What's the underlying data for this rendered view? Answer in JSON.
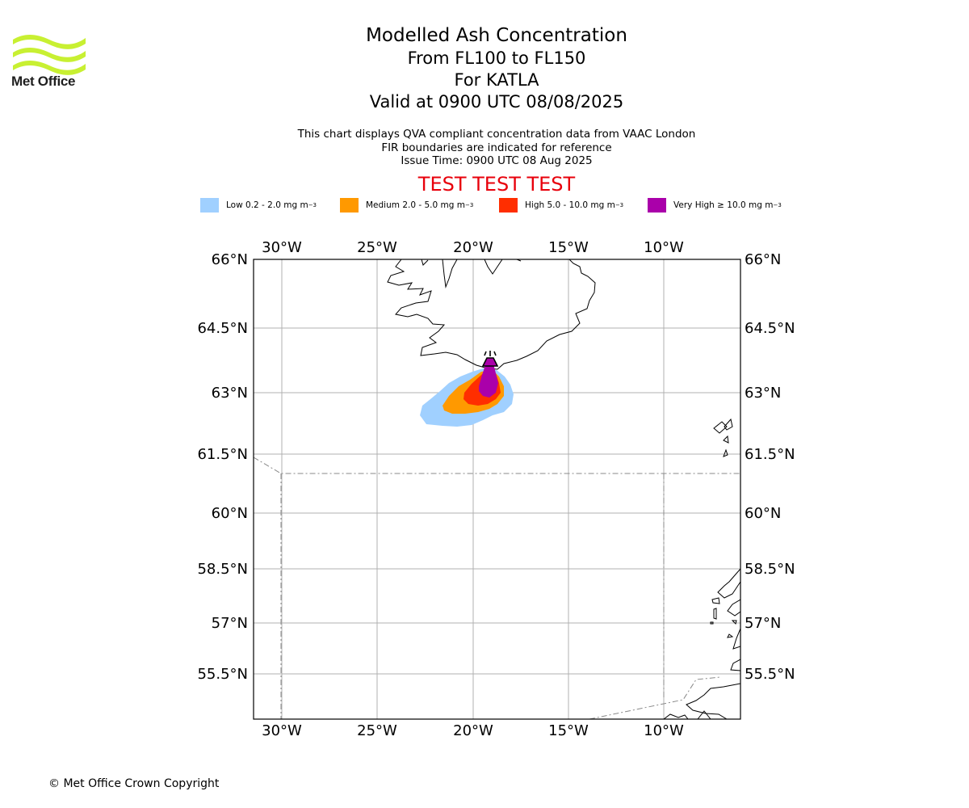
{
  "branding": {
    "logo_text": "Met Office",
    "logo_color": "#c8f032"
  },
  "title": {
    "main": "Modelled Ash Concentration",
    "levels": "From FL100 to FL150",
    "volcano": "For KATLA",
    "valid": "Valid at 0900 UTC 08/08/2025"
  },
  "notes": {
    "line1": "This chart displays QVA compliant concentration data from VAAC London",
    "line2": "FIR boundaries are indicated for reference",
    "line3": "Issue Time: 0900 UTC 08 Aug 2025"
  },
  "test_banner": {
    "text": "TEST TEST TEST",
    "color": "#e8000b"
  },
  "legend": [
    {
      "label": "Low 0.2 - 2.0 mg m",
      "unit_exp": "−3",
      "color": "#a0d0ff"
    },
    {
      "label": "Medium 2.0 - 5.0 mg m",
      "unit_exp": "−3",
      "color": "#ff9900"
    },
    {
      "label": "High 5.0 - 10.0 mg m",
      "unit_exp": "−3",
      "color": "#ff2e00"
    },
    {
      "label": "Very High  ≥  10.0 mg m",
      "unit_exp": "−3",
      "color": "#aa00aa"
    }
  ],
  "map": {
    "lon_range": [
      -31.5,
      -6
    ],
    "lat_range": [
      54.5,
      66
    ],
    "lon_ticks": [
      "30°W",
      "25°W",
      "20°W",
      "15°W",
      "10°W"
    ],
    "lat_ticks": [
      "66°N",
      "64.5°N",
      "63°N",
      "61.5°N",
      "60°N",
      "58.5°N",
      "57°N",
      "55.5°N"
    ],
    "volcano_marker": {
      "name": "KATLA",
      "icon": "volcano-icon"
    }
  },
  "footer": {
    "copyright": "© Met Office Crown Copyright"
  }
}
